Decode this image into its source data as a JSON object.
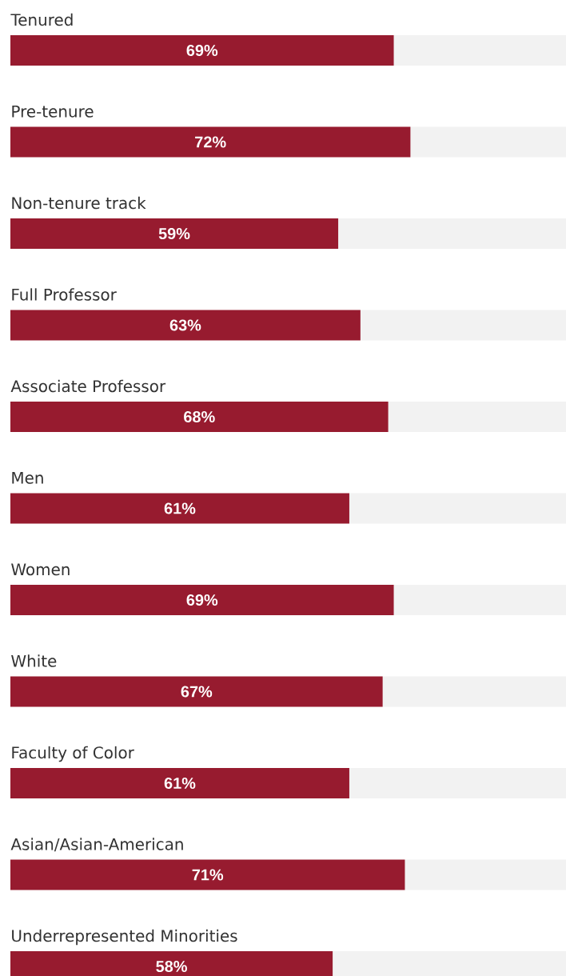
{
  "chart_data": {
    "type": "bar",
    "orientation": "horizontal",
    "stacked": true,
    "categories": [
      "Tenured",
      "Pre-tenure",
      "Non-tenure track",
      "Full Professor",
      "Associate Professor",
      "Men",
      "Women",
      "White",
      "Faculty of Color",
      "Asian/Asian-American",
      "Underrepresented Minorities"
    ],
    "series": [
      {
        "color": "#971b2f",
        "values": [
          69,
          72,
          59,
          63,
          68,
          61,
          69,
          67,
          61,
          71,
          58
        ],
        "value_labels": [
          "69%",
          "72%",
          "59%",
          "63%",
          "68%",
          "61%",
          "69%",
          "67%",
          "61%",
          "71%",
          "58%"
        ]
      },
      {
        "color": "#f2f2f2",
        "values": [
          31,
          28,
          41,
          37,
          32,
          39,
          31,
          33,
          39,
          29,
          42
        ]
      }
    ],
    "xlim": [
      0,
      100
    ]
  }
}
